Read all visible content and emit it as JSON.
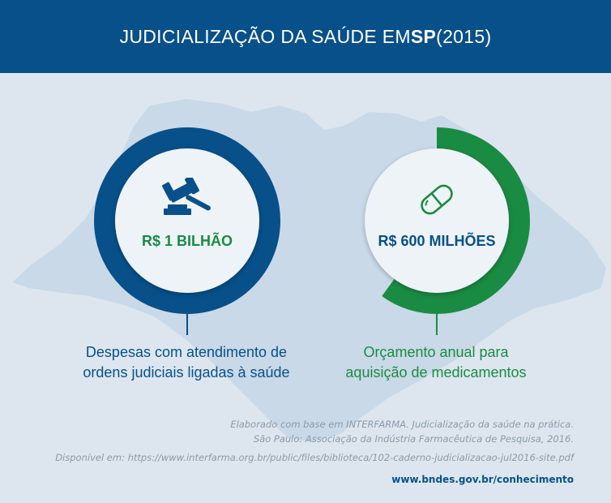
{
  "header": {
    "title_prefix": "JUDICIALIZAÇÃO DA SAÚDE EM ",
    "title_bold": "SP",
    "title_suffix": " (2015)"
  },
  "items": [
    {
      "icon": "gavel-icon",
      "value": "R$ 1 BILHÃO",
      "description_line1": "Despesas com atendimento de",
      "description_line2": "ordens judiciais ligadas à saúde",
      "ring_color": "#07508a",
      "value_color": "#1a8b43",
      "ring_fraction": 1.0
    },
    {
      "icon": "pill-icon",
      "value": "R$ 600 MILHÕES",
      "description_line1": "Orçamento anual para",
      "description_line2": "aquisição de medicamentos",
      "ring_color": "#1a8b43",
      "value_color": "#07508a",
      "ring_fraction": 0.6
    }
  ],
  "source": {
    "line1": "Elaborado com base em INTERFARMA. Judicialização da saúde na prática.",
    "line2": "São Paulo: Associação da Indústria Farmacêutica de Pesquisa, 2016.",
    "line3": "Disponível em: https://www.interfarma.org.br/public/files/biblioteca/102-caderno-judicializacao-jul2016-site.pdf"
  },
  "footer": {
    "link": "www.bndes.gov.br/conhecimento"
  },
  "colors": {
    "header_bg": "#07508a",
    "map_fill": "#c7d7e7",
    "background": "#dde6ef"
  }
}
